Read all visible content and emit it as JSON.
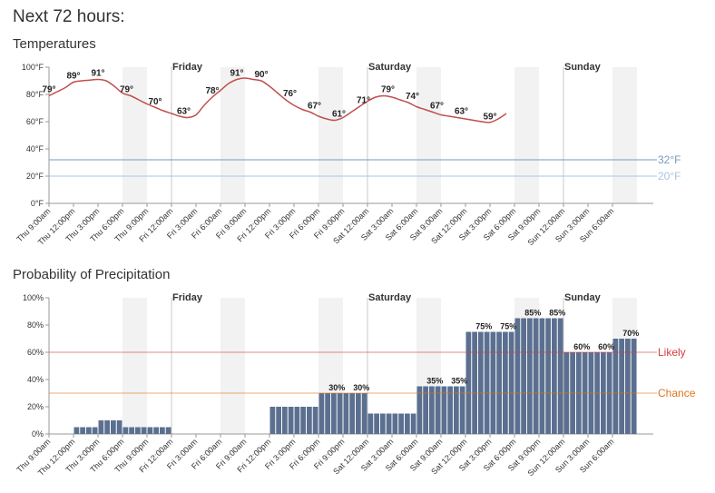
{
  "page_title": "Next 72 hours:",
  "colors": {
    "temp_line": "#c0504d",
    "bar": "#5b7090",
    "freeze_line": "#7a9ab8",
    "cold_line": "#a9c4e0",
    "likely": "#d63a3a",
    "chance": "#e0741a",
    "night_band": "#f2f2f2",
    "axis": "#999999"
  },
  "x_ticks": [
    "Thu 9:00am",
    "Thu 12:00pm",
    "Thu 3:00pm",
    "Thu 6:00pm",
    "Thu 9:00pm",
    "Fri 12:00am",
    "Fri 3:00am",
    "Fri 6:00am",
    "Fri 9:00am",
    "Fri 12:00pm",
    "Fri 3:00pm",
    "Fri 6:00pm",
    "Fri 9:00pm",
    "Sat 12:00am",
    "Sat 3:00am",
    "Sat 6:00am",
    "Sat 9:00am",
    "Sat 12:00pm",
    "Sat 3:00pm",
    "Sat 6:00pm",
    "Sat 9:00pm",
    "Sun 12:00am",
    "Sun 3:00am",
    "Sun 6:00am"
  ],
  "day_labels": [
    {
      "label": "Friday",
      "tick": 5
    },
    {
      "label": "Saturday",
      "tick": 13
    },
    {
      "label": "Sunday",
      "tick": 21
    }
  ],
  "chart_data": [
    {
      "type": "line",
      "title": "Temperatures",
      "ylim": [
        0,
        100
      ],
      "y_ticks": [
        "0°F",
        "20°F",
        "40°F",
        "60°F",
        "80°F",
        "100°F"
      ],
      "x_unit": "hour",
      "series": [
        {
          "points": [
            [
              0,
              79
            ],
            [
              1,
              82
            ],
            [
              2,
              85
            ],
            [
              3,
              89
            ],
            [
              4,
              90
            ],
            [
              5,
              90.5
            ],
            [
              6,
              91
            ],
            [
              7,
              90
            ],
            [
              8,
              86
            ],
            [
              9,
              81
            ],
            [
              10,
              79
            ],
            [
              11,
              76
            ],
            [
              12,
              73
            ],
            [
              13,
              70.5
            ],
            [
              14,
              68
            ],
            [
              15,
              66
            ],
            [
              16,
              64
            ],
            [
              17,
              63
            ],
            [
              18,
              65
            ],
            [
              19,
              72
            ],
            [
              20,
              78
            ],
            [
              21,
              83
            ],
            [
              22,
              88
            ],
            [
              23,
              91
            ],
            [
              24,
              92
            ],
            [
              25,
              91
            ],
            [
              26,
              90
            ],
            [
              27,
              86
            ],
            [
              28,
              81
            ],
            [
              29,
              76
            ],
            [
              30,
              72
            ],
            [
              31,
              69
            ],
            [
              32,
              67
            ],
            [
              33,
              64
            ],
            [
              34,
              62
            ],
            [
              35,
              61
            ],
            [
              36,
              63
            ],
            [
              37,
              67
            ],
            [
              38,
              71
            ],
            [
              39,
              75
            ],
            [
              40,
              78
            ],
            [
              41,
              79
            ],
            [
              42,
              78
            ],
            [
              43,
              76
            ],
            [
              44,
              74
            ],
            [
              45,
              71
            ],
            [
              46,
              69
            ],
            [
              47,
              67
            ],
            [
              48,
              65
            ],
            [
              49,
              64
            ],
            [
              50,
              63
            ],
            [
              51,
              62
            ],
            [
              52,
              61
            ],
            [
              53,
              60
            ],
            [
              54,
              59.5
            ],
            [
              55,
              62
            ],
            [
              56,
              66
            ]
          ]
        }
      ],
      "data_labels": [
        {
          "x": 0,
          "y": 79,
          "text": "79°"
        },
        {
          "x": 3,
          "y": 89,
          "text": "89°"
        },
        {
          "x": 6,
          "y": 91,
          "text": "91°"
        },
        {
          "x": 9.5,
          "y": 79,
          "text": "79°"
        },
        {
          "x": 13,
          "y": 70,
          "text": "70°"
        },
        {
          "x": 16.5,
          "y": 63,
          "text": "63°"
        },
        {
          "x": 20,
          "y": 78,
          "text": "78°"
        },
        {
          "x": 23,
          "y": 91,
          "text": "91°"
        },
        {
          "x": 26,
          "y": 90,
          "text": "90°"
        },
        {
          "x": 29.5,
          "y": 76,
          "text": "76°"
        },
        {
          "x": 32.5,
          "y": 67,
          "text": "67°"
        },
        {
          "x": 35.5,
          "y": 61,
          "text": "61°"
        },
        {
          "x": 38.5,
          "y": 71,
          "text": "71°"
        },
        {
          "x": 41.5,
          "y": 79,
          "text": "79°"
        },
        {
          "x": 44.5,
          "y": 74,
          "text": "74°"
        },
        {
          "x": 47.5,
          "y": 67,
          "text": "67°"
        },
        {
          "x": 50.5,
          "y": 63,
          "text": "63°"
        },
        {
          "x": 54,
          "y": 59,
          "text": "59°"
        }
      ],
      "reference_lines": [
        {
          "y": 32,
          "label": "32°F",
          "color": "#7a9ab8"
        },
        {
          "y": 20,
          "label": "20°F",
          "color": "#a9c4e0"
        }
      ]
    },
    {
      "type": "bar",
      "title": "Probability of Precipitation",
      "ylim": [
        0,
        100
      ],
      "y_ticks": [
        "0%",
        "20%",
        "40%",
        "60%",
        "80%",
        "100%"
      ],
      "x_unit": "hour",
      "values": [
        0,
        0,
        0,
        0,
        5,
        5,
        5,
        5,
        10,
        10,
        10,
        10,
        5,
        5,
        5,
        5,
        5,
        5,
        5,
        5,
        0,
        0,
        0,
        0,
        0,
        0,
        0,
        0,
        0,
        0,
        0,
        0,
        0,
        0,
        0,
        0,
        20,
        20,
        20,
        20,
        20,
        20,
        20,
        20,
        30,
        30,
        30,
        30,
        30,
        30,
        30,
        30,
        15,
        15,
        15,
        15,
        15,
        15,
        15,
        15,
        35,
        35,
        35,
        35,
        35,
        35,
        35,
        35,
        75,
        75,
        75,
        75,
        75,
        75,
        75,
        75,
        85,
        85,
        85,
        85,
        85,
        85,
        85,
        85,
        60,
        60,
        60,
        60,
        60,
        60,
        60,
        60,
        70,
        70,
        70,
        70
      ],
      "value_labels": [
        {
          "x": 46,
          "text": "30%",
          "y": 30
        },
        {
          "x": 50,
          "text": "30%",
          "y": 30
        },
        {
          "x": 62,
          "text": "35%",
          "y": 35
        },
        {
          "x": 66,
          "text": "35%",
          "y": 35
        },
        {
          "x": 70,
          "text": "75%",
          "y": 75
        },
        {
          "x": 74,
          "text": "75%",
          "y": 75
        },
        {
          "x": 78,
          "text": "85%",
          "y": 85
        },
        {
          "x": 82,
          "text": "85%",
          "y": 85
        },
        {
          "x": 86,
          "text": "60%",
          "y": 60
        },
        {
          "x": 90,
          "text": "60%",
          "y": 60
        },
        {
          "x": 94,
          "text": "70%",
          "y": 70
        }
      ],
      "reference_lines": [
        {
          "y": 60,
          "label": "Likely",
          "color": "#d63a3a"
        },
        {
          "y": 30,
          "label": "Chance",
          "color": "#e0741a"
        }
      ]
    }
  ]
}
